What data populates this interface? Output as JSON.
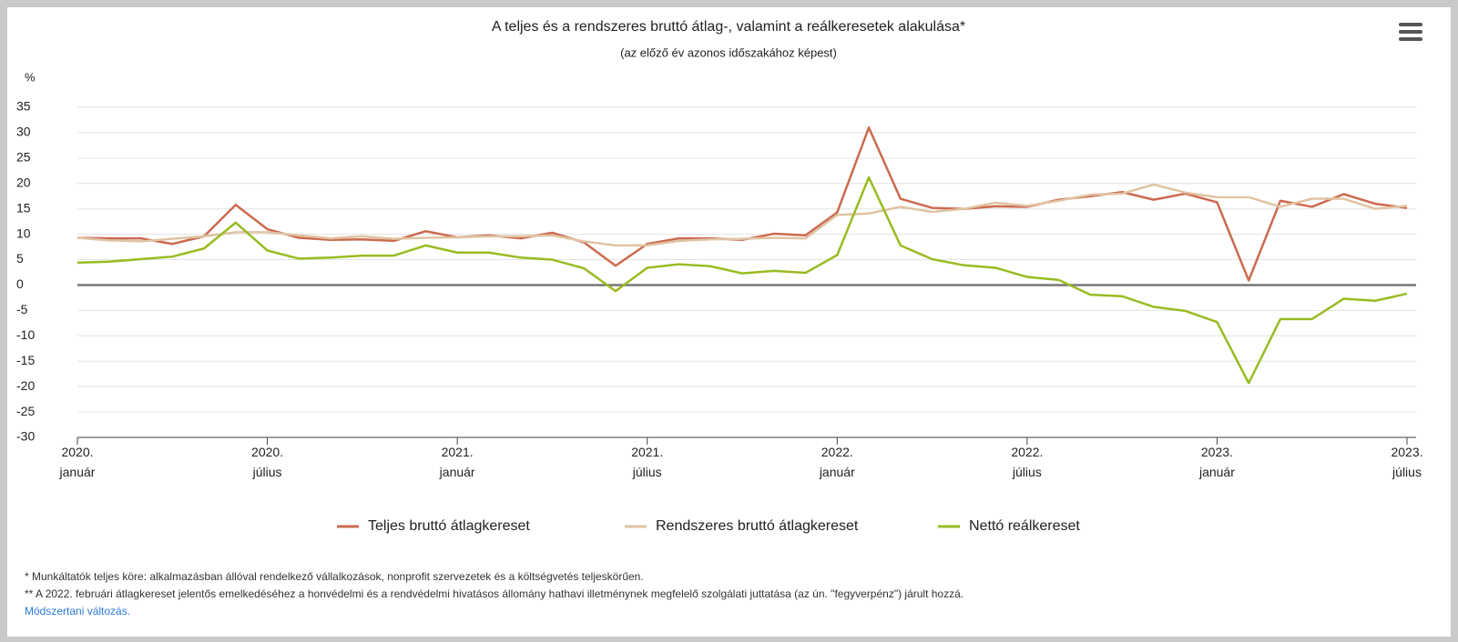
{
  "chart_data": {
    "type": "line",
    "title": "A teljes és a rendszeres bruttó átlag-, valamint a reálkeresetek alakulása*",
    "subtitle": "(az előző év azonos időszakához képest)",
    "ylabel": "%",
    "categories": [
      "2020. január",
      null,
      null,
      null,
      null,
      null,
      "2020. július",
      null,
      null,
      null,
      null,
      null,
      "2021. január",
      null,
      null,
      null,
      null,
      null,
      "2021. július",
      null,
      null,
      null,
      null,
      null,
      "2022. január",
      null,
      null,
      null,
      null,
      null,
      "2022. július",
      null,
      null,
      null,
      null,
      null,
      "2023. január",
      null,
      null,
      null,
      null,
      null,
      "2023. július"
    ],
    "series": [
      {
        "name": "Teljes bruttó átlagkereset",
        "color": "#cc6a4f",
        "values": [
          9.3,
          9.2,
          9.2,
          8.1,
          9.6,
          15.8,
          11.0,
          9.3,
          8.9,
          9.0,
          8.7,
          10.6,
          9.4,
          9.8,
          9.2,
          10.3,
          8.4,
          3.8,
          8.1,
          9.2,
          9.2,
          8.9,
          10.1,
          9.8,
          14.3,
          31.0,
          17.0,
          15.2,
          15.0,
          15.5,
          15.4,
          16.8,
          17.5,
          18.3,
          16.8,
          18.0,
          16.3,
          0.9,
          16.6,
          15.4,
          17.9,
          16.0,
          15.2
        ]
      },
      {
        "name": "Rendszeres bruttó átlagkereset",
        "color": "#e0c3a3",
        "values": [
          9.3,
          8.8,
          8.6,
          9.1,
          9.6,
          10.4,
          10.4,
          9.8,
          9.2,
          9.6,
          9.1,
          9.3,
          9.4,
          9.6,
          9.6,
          9.8,
          8.6,
          7.8,
          7.8,
          8.7,
          9.0,
          9.1,
          9.3,
          9.2,
          13.8,
          14.1,
          15.4,
          14.4,
          15.0,
          16.2,
          15.6,
          16.6,
          17.8,
          18.0,
          19.8,
          18.2,
          17.3,
          17.3,
          15.4,
          17.0,
          17.0,
          15.0,
          15.6
        ]
      },
      {
        "name": "Nettó reálkereset",
        "color": "#99bb22",
        "values": [
          4.4,
          4.6,
          5.1,
          5.6,
          7.2,
          12.3,
          6.8,
          5.2,
          5.4,
          5.8,
          5.8,
          7.8,
          6.4,
          6.4,
          5.4,
          5.0,
          3.3,
          -1.2,
          3.4,
          4.1,
          3.7,
          2.3,
          2.8,
          2.4,
          5.9,
          21.2,
          7.8,
          5.1,
          3.9,
          3.4,
          1.6,
          1.0,
          -1.9,
          -2.2,
          -4.3,
          -5.1,
          -7.3,
          -19.3,
          -6.7,
          -6.7,
          -2.7,
          -3.1,
          -1.7
        ]
      }
    ],
    "ylim": [
      -30,
      35
    ],
    "yticks": [
      -30,
      -25,
      -20,
      -15,
      -10,
      -5,
      0,
      5,
      10,
      15,
      20,
      25,
      30,
      35
    ],
    "grid": true,
    "legend": "bottom",
    "notes": [
      "* Munkáltatók teljes köre: alkalmazásban állóval rendelkező vállalkozások, nonprofit szervezetek és a költségvetés teljeskörűen.",
      "** A 2022. februári átlagkereset jelentős emelkedéséhez a honvédelmi és a rendvédelmi hivatásos állomány hathavi illetménynek megfelelő szolgálati juttatása (az ún. \"fegyverpénz\") járult hozzá."
    ],
    "link": "Módszertani változás."
  }
}
